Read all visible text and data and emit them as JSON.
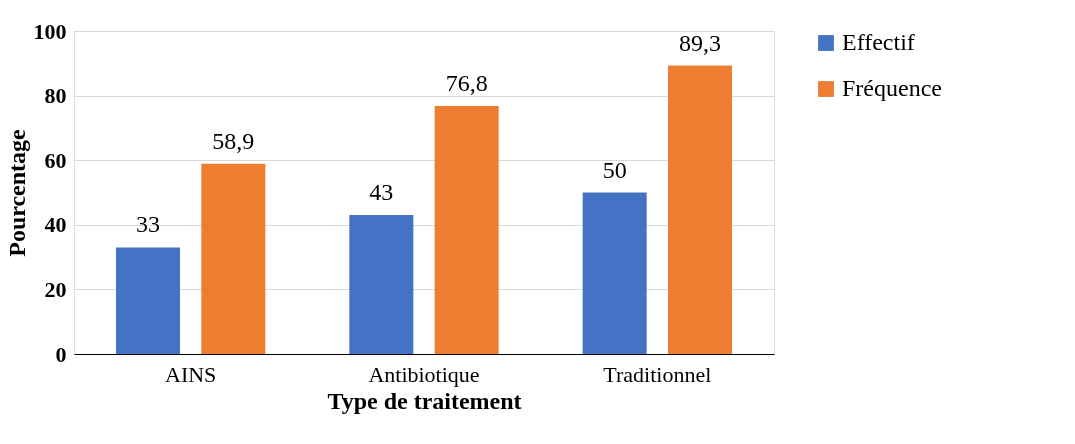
{
  "chart_data": {
    "type": "bar",
    "xlabel": "Type de traitement",
    "ylabel": "Pourcentage",
    "categories": [
      "AINS",
      "Antibiotique",
      "Traditionnel"
    ],
    "series": [
      {
        "name": "Effectif",
        "color": "#4472c4",
        "values": [
          33,
          43,
          50
        ],
        "value_labels": [
          "33",
          "43",
          "50"
        ]
      },
      {
        "name": "Fréquence",
        "color": "#ed7d31",
        "values": [
          58.9,
          76.8,
          89.3
        ],
        "value_labels": [
          "58,9",
          "76,8",
          "89,3"
        ]
      }
    ],
    "ylim": [
      0,
      100
    ],
    "yticks": [
      0,
      20,
      40,
      60,
      80,
      100
    ],
    "grid": "y",
    "legend": "right"
  }
}
